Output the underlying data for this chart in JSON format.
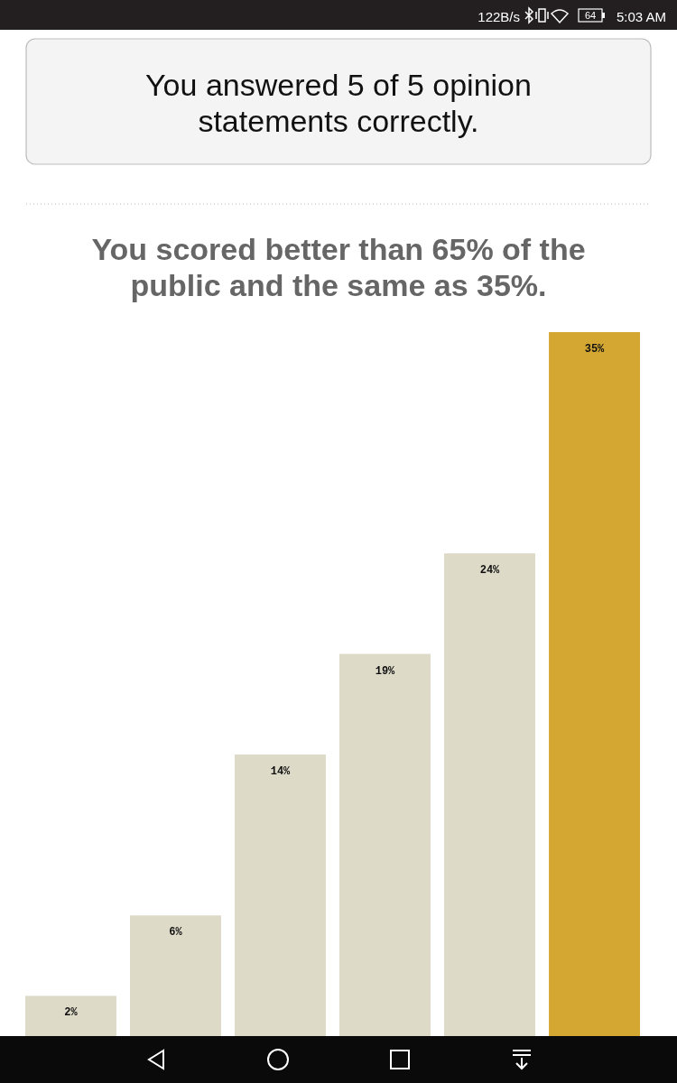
{
  "chart_data": {
    "type": "bar",
    "title": "You scored better than 65% of the public and the same as 35%.",
    "annotations": [
      "122B/s",
      "64",
      "5:03 AM",
      "You answered 5 of 5 opinion statements correctly."
    ],
    "categories": [
      null,
      null,
      null,
      null,
      null,
      null
    ],
    "values": [
      2,
      6,
      14,
      19,
      24,
      35
    ],
    "colors": [
      "#dddac8",
      "#dddac8",
      "#dddac8",
      "#dddac8",
      "#dddac8",
      "#d4a733"
    ],
    "value_labels": [
      "2%",
      "6%",
      "14%",
      "19%",
      "24%",
      "35%"
    ]
  }
}
